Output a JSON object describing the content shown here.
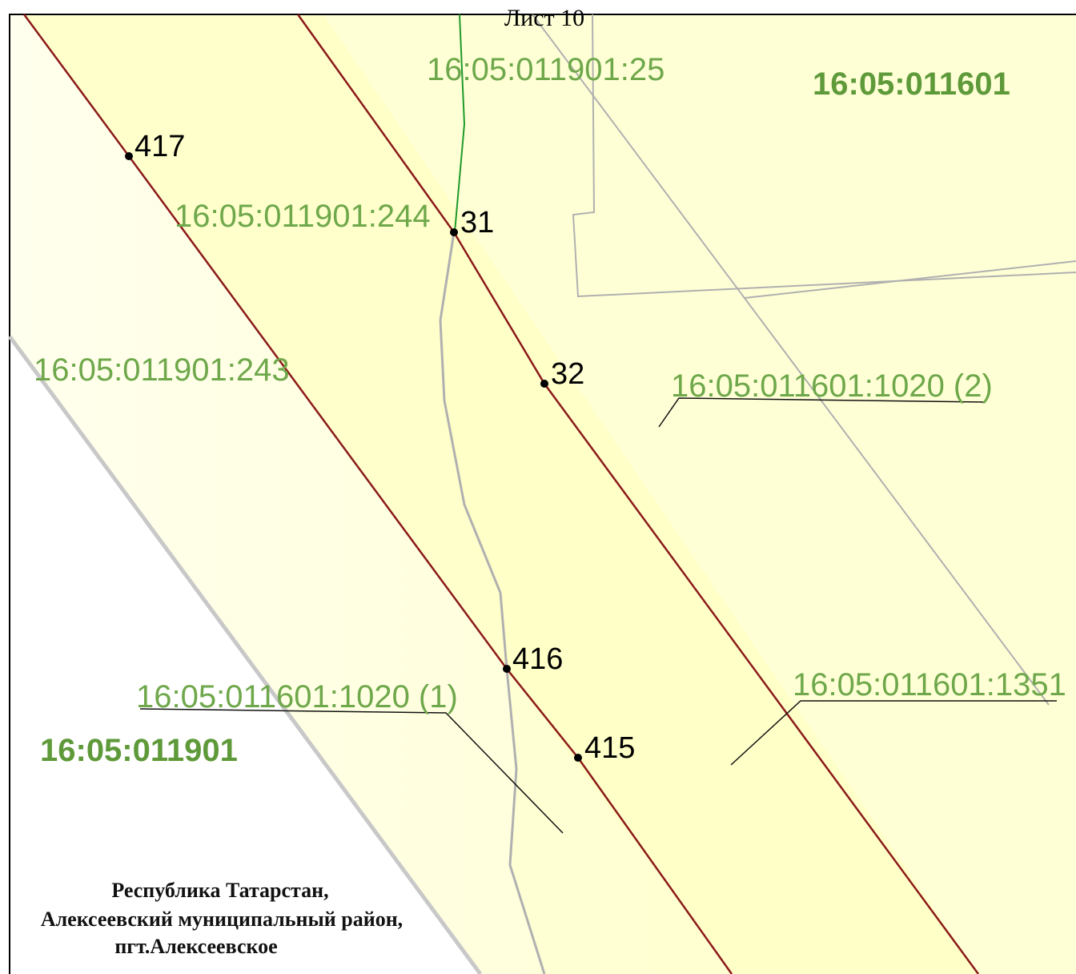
{
  "sheet_title": "Лист 10",
  "blocks": [
    "16:05:011601",
    "16:05:011901"
  ],
  "parcels": [
    "16:05:011901:25",
    "16:05:011901:244",
    "16:05:011901:243",
    "16:05:011601:1020 (2)",
    "16:05:011601:1020 (1)",
    "16:05:011601:1351"
  ],
  "points": [
    "417",
    "31",
    "32",
    "416",
    "415"
  ],
  "address": [
    "Республика Татарстан,",
    "Алексеевский муниципальный район,",
    "пгт.Алексеевское"
  ]
}
